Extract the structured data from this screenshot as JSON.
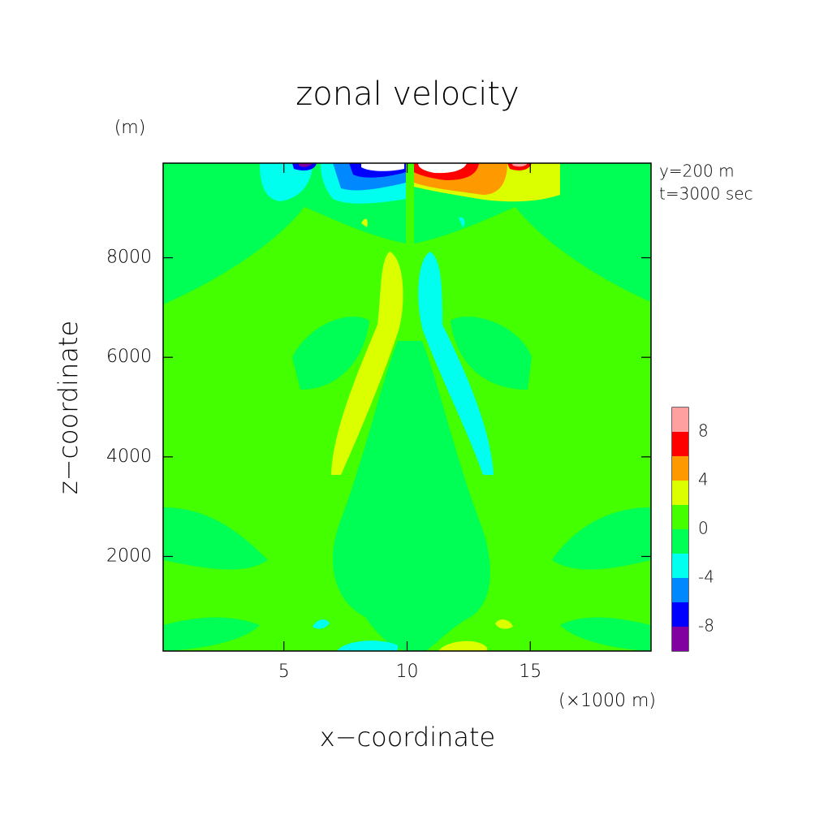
{
  "chart_data": {
    "type": "contour",
    "title": "zonal velocity",
    "xlabel": "x−coordinate",
    "xunit": "(×1000 m)",
    "ylabel": "z−coordinate",
    "yunit": "(m)",
    "annotations": [
      "y=200 m",
      "t=3000 sec"
    ],
    "xlim": [
      0.1,
      19.9
    ],
    "xticks": [
      5,
      10,
      15
    ],
    "ylim": [
      100,
      9900
    ],
    "yticks": [
      2000,
      4000,
      6000,
      8000
    ],
    "levels": [
      -10,
      -8,
      -6,
      -4,
      -2,
      0,
      2,
      4,
      6,
      8,
      10
    ],
    "colors": [
      "#8000a0",
      "#0000ff",
      "#0088ff",
      "#00ffee",
      "#00ff55",
      "#44ff00",
      "#dcff00",
      "#ff9900",
      "#ff0000",
      "#ffa0a0"
    ],
    "colorbar_ticks": [
      8,
      4,
      0,
      -4,
      -8
    ]
  }
}
